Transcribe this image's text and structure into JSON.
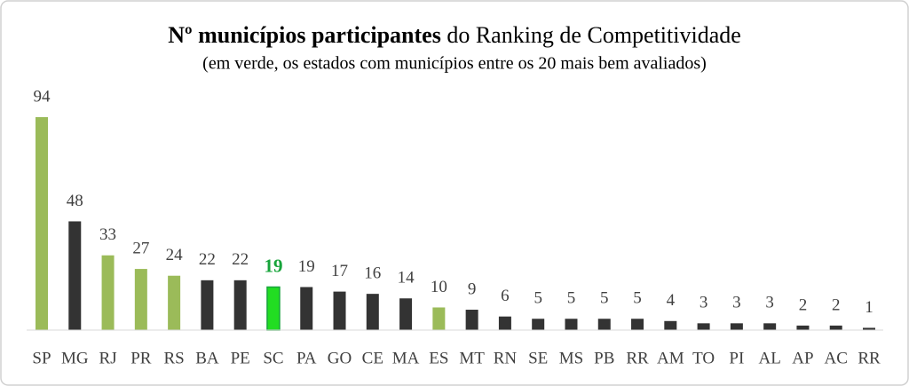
{
  "chart_data": {
    "type": "bar",
    "title": {
      "bold": "Nº municípios participantes",
      "regular": "do Ranking de Competitividade"
    },
    "subtitle": "(em verde, os estados com municípios entre os 20 mais bem avaliados)",
    "categories": [
      "SP",
      "MG",
      "RJ",
      "PR",
      "RS",
      "BA",
      "PE",
      "SC",
      "PA",
      "GO",
      "CE",
      "MA",
      "ES",
      "MT",
      "RN",
      "SE",
      "MS",
      "PB",
      "RR",
      "AM",
      "TO",
      "PI",
      "AL",
      "AP",
      "AC",
      "RR"
    ],
    "values": [
      94,
      48,
      33,
      27,
      24,
      22,
      22,
      19,
      19,
      17,
      16,
      14,
      10,
      9,
      6,
      5,
      5,
      5,
      5,
      4,
      3,
      3,
      3,
      2,
      2,
      1
    ],
    "colors": [
      "#9bbb59",
      "#333333",
      "#9bbb59",
      "#9bbb59",
      "#9bbb59",
      "#333333",
      "#333333",
      "#22dd22",
      "#333333",
      "#333333",
      "#333333",
      "#333333",
      "#9bbb59",
      "#333333",
      "#333333",
      "#333333",
      "#333333",
      "#333333",
      "#333333",
      "#333333",
      "#333333",
      "#333333",
      "#333333",
      "#333333",
      "#333333",
      "#333333"
    ],
    "highlight": {
      "index": 7,
      "color": "#17a43b"
    }
  }
}
